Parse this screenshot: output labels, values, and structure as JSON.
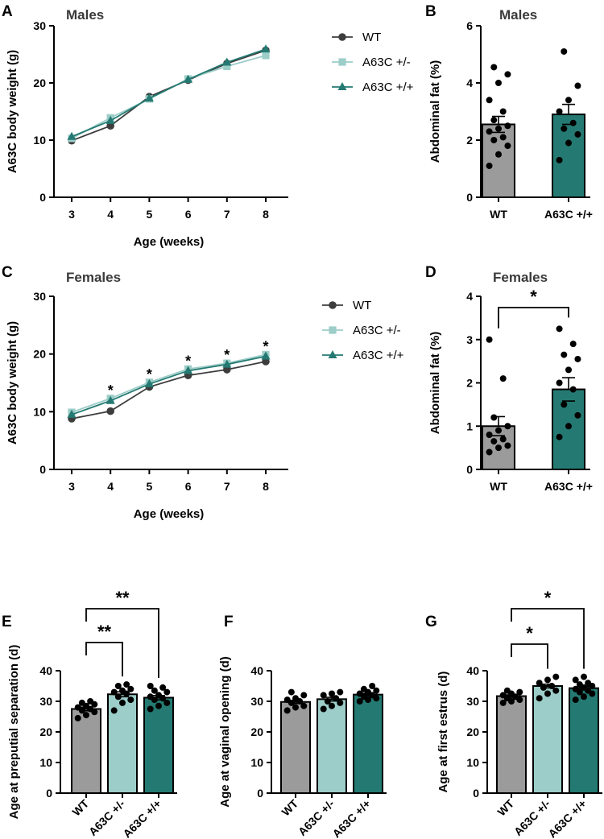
{
  "colors": {
    "WT": "#3d3d3d",
    "A63C +/-": "#9ccdc8",
    "A63C +/+": "#247a72",
    "bar_WT": "#9b9b9b"
  },
  "chart_data": [
    {
      "panel": "A",
      "type": "line",
      "title": "Males",
      "xlabel": "Age (weeks)",
      "ylabel": "A63C body weight (g)",
      "x": [
        3,
        4,
        5,
        6,
        7,
        8
      ],
      "ylim": [
        0,
        30
      ],
      "yticks": [
        0,
        10,
        20,
        30
      ],
      "series": [
        {
          "name": "WT",
          "marker": "circle",
          "values": [
            9.9,
            12.5,
            17.6,
            20.5,
            23.4,
            25.7
          ]
        },
        {
          "name": "A63C +/-",
          "marker": "square",
          "values": [
            10.3,
            13.9,
            17.2,
            20.7,
            22.9,
            24.8
          ]
        },
        {
          "name": "A63C +/+",
          "marker": "triangle",
          "values": [
            10.6,
            13.4,
            17.3,
            20.6,
            23.6,
            25.9
          ]
        }
      ],
      "annotations": []
    },
    {
      "panel": "B",
      "type": "bar",
      "title": "Males",
      "ylabel": "Abdominal fat (%)",
      "categories": [
        "WT",
        "A63C +/+"
      ],
      "ylim": [
        0,
        6
      ],
      "yticks": [
        0,
        2,
        4,
        6
      ],
      "values": [
        2.55,
        2.9
      ],
      "sem": [
        0.28,
        0.35
      ],
      "points": [
        [
          1.1,
          1.5,
          1.8,
          2.0,
          2.1,
          2.3,
          2.4,
          2.5,
          2.7,
          3.0,
          3.4,
          4.0,
          4.3,
          4.55
        ],
        [
          1.3,
          1.9,
          2.2,
          2.4,
          2.6,
          3.0,
          3.4,
          3.9,
          5.1
        ]
      ],
      "annotations": []
    },
    {
      "panel": "C",
      "type": "line",
      "title": "Females",
      "xlabel": "Age (weeks)",
      "ylabel": "A63C body weight (g)",
      "x": [
        3,
        4,
        5,
        6,
        7,
        8
      ],
      "ylim": [
        0,
        30
      ],
      "yticks": [
        0,
        10,
        20,
        30
      ],
      "series": [
        {
          "name": "WT",
          "marker": "circle",
          "values": [
            8.8,
            10.1,
            14.3,
            16.3,
            17.3,
            18.7
          ]
        },
        {
          "name": "A63C +/-",
          "marker": "square",
          "values": [
            9.9,
            12.3,
            15.1,
            17.4,
            18.4,
            19.9
          ]
        },
        {
          "name": "A63C +/+",
          "marker": "triangle",
          "values": [
            9.5,
            11.9,
            14.8,
            17.1,
            18.2,
            19.6
          ]
        }
      ],
      "annotations": [
        {
          "x": 4,
          "text": "*"
        },
        {
          "x": 5,
          "text": "*"
        },
        {
          "x": 6,
          "text": "*"
        },
        {
          "x": 7,
          "text": "*"
        },
        {
          "x": 8,
          "text": "*"
        }
      ]
    },
    {
      "panel": "D",
      "type": "bar",
      "title": "Females",
      "ylabel": "Abdominal fat (%)",
      "categories": [
        "WT",
        "A63C +/+"
      ],
      "ylim": [
        0,
        4
      ],
      "yticks": [
        0,
        1,
        2,
        3,
        4
      ],
      "values": [
        1.0,
        1.85
      ],
      "sem": [
        0.22,
        0.27
      ],
      "points": [
        [
          0.4,
          0.5,
          0.55,
          0.65,
          0.7,
          0.8,
          0.9,
          1.0,
          1.2,
          2.1,
          3.0
        ],
        [
          0.75,
          1.0,
          1.25,
          1.5,
          1.85,
          2.0,
          2.3,
          2.55,
          2.65,
          2.9,
          3.25
        ]
      ],
      "annotations": [
        {
          "from": 0,
          "to": 1,
          "text": "*"
        }
      ]
    },
    {
      "panel": "E",
      "type": "bar",
      "title": "",
      "ylabel": "Age at preputial separation (d)",
      "categories": [
        "WT",
        "A63C +/-",
        "A63C +/+"
      ],
      "ylim": [
        0,
        40
      ],
      "yticks": [
        0,
        10,
        20,
        30,
        40
      ],
      "values": [
        27.5,
        32.3,
        31.2
      ],
      "sem": [
        0.6,
        0.8,
        0.7
      ],
      "points": [
        [
          24.5,
          25.5,
          26.5,
          27.0,
          27.5,
          28.0,
          28.5,
          29.0,
          29.5,
          30.0
        ],
        [
          27.0,
          29.5,
          30.5,
          31.5,
          32.5,
          33.0,
          33.5,
          34.0,
          35.0,
          35.5
        ],
        [
          27.5,
          28.5,
          29.5,
          30.5,
          31.0,
          31.5,
          32.0,
          33.0,
          33.5,
          34.5,
          35.0
        ]
      ],
      "annotations": [
        {
          "from": 0,
          "to": 1,
          "text": "**"
        },
        {
          "from": 0,
          "to": 2,
          "text": "**"
        }
      ]
    },
    {
      "panel": "F",
      "type": "bar",
      "title": "",
      "ylabel": "Age at vaginal opening (d)",
      "categories": [
        "WT",
        "A63C +/-",
        "A63C +/+"
      ],
      "ylim": [
        0,
        40
      ],
      "yticks": [
        0,
        10,
        20,
        30,
        40
      ],
      "values": [
        29.8,
        30.7,
        32.2
      ],
      "sem": [
        0.5,
        0.6,
        0.4
      ],
      "points": [
        [
          27.0,
          28.0,
          28.5,
          29.5,
          30.0,
          30.5,
          31.0,
          32.0,
          33.0
        ],
        [
          27.5,
          28.5,
          29.5,
          30.0,
          31.0,
          32.0,
          32.5,
          33.0
        ],
        [
          30.0,
          30.5,
          31.0,
          31.5,
          32.0,
          32.5,
          33.0,
          33.5,
          34.0,
          35.0
        ]
      ],
      "annotations": []
    },
    {
      "panel": "G",
      "type": "bar",
      "title": "",
      "ylabel": "Age at first estrus (d)",
      "categories": [
        "WT",
        "A63C +/-",
        "A63C +/+"
      ],
      "ylim": [
        0,
        40
      ],
      "yticks": [
        0,
        10,
        20,
        30,
        40
      ],
      "values": [
        31.7,
        35.0,
        34.3
      ],
      "sem": [
        0.4,
        0.6,
        0.5
      ],
      "points": [
        [
          29.5,
          30.0,
          30.5,
          31.0,
          31.5,
          32.0,
          32.5,
          33.0,
          33.5
        ],
        [
          31.0,
          32.5,
          33.5,
          34.5,
          35.0,
          36.0,
          37.0,
          38.0
        ],
        [
          30.5,
          31.5,
          32.5,
          33.0,
          33.5,
          34.0,
          34.5,
          35.0,
          35.5,
          36.0,
          37.0,
          38.0
        ]
      ],
      "annotations": [
        {
          "from": 0,
          "to": 1,
          "text": "*"
        },
        {
          "from": 0,
          "to": 2,
          "text": "*"
        }
      ]
    }
  ]
}
